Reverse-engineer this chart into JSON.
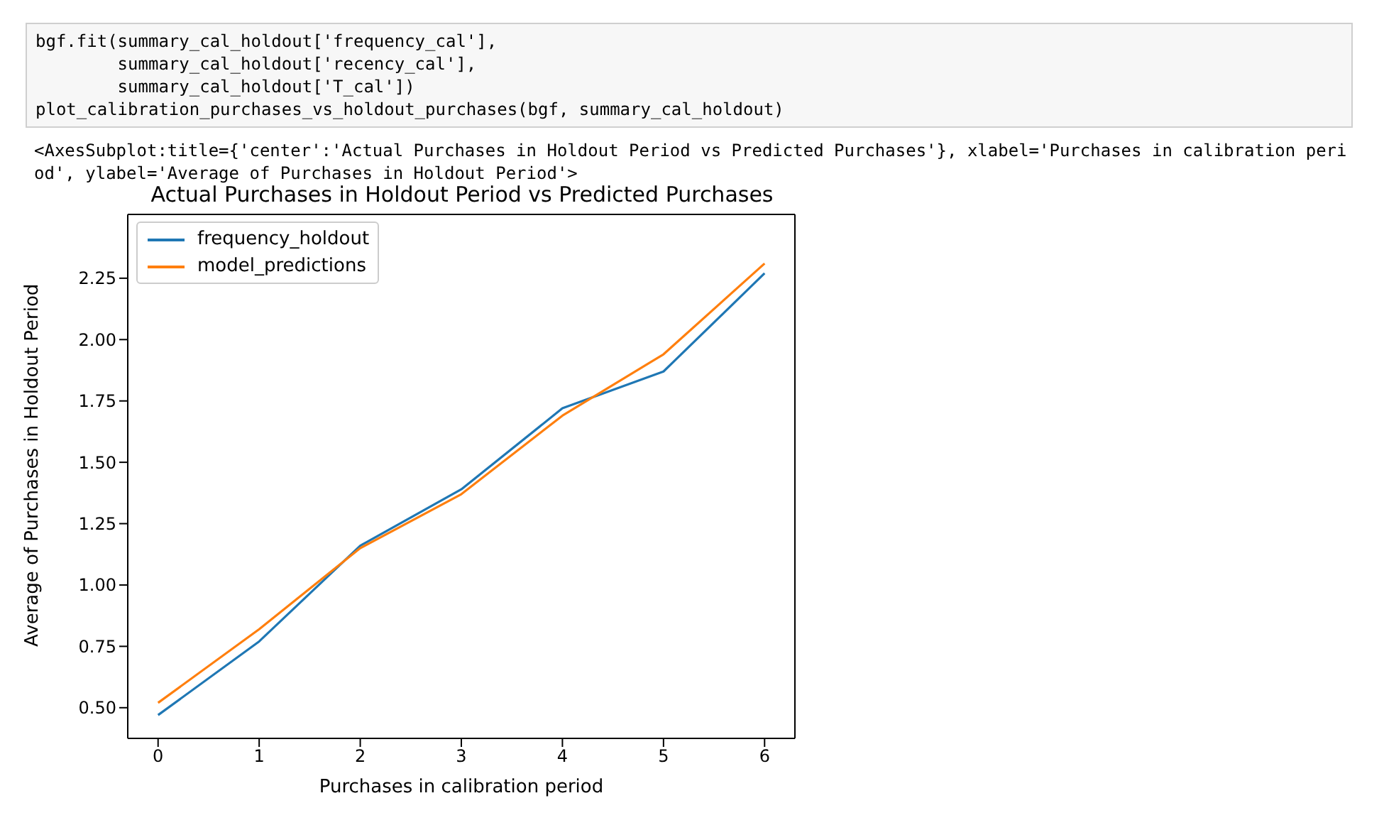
{
  "chart_data": {
    "type": "line",
    "title": "Actual Purchases in Holdout Period vs Predicted Purchases",
    "xlabel": "Purchases in calibration period",
    "ylabel": "Average of Purchases in Holdout Period",
    "annotations": [
      "bgf.fit(summary_cal_holdout['frequency_cal'],",
      "        summary_cal_holdout['recency_cal'],",
      "        summary_cal_holdout['T_cal'])",
      "plot_calibration_purchases_vs_holdout_purchases(bgf, summary_cal_holdout)",
      "<AxesSubplot:title={'center':'Actual Purchases in Holdout Period vs Predicted Purchases'}, xlabel='Purchases in calibration period', ylabel='Average of Purchases in Holdout Period'>"
    ],
    "x": [
      0,
      1,
      2,
      3,
      4,
      5,
      6
    ],
    "series": [
      {
        "name": "frequency_holdout",
        "color": "#1f77b4",
        "values": [
          0.47,
          0.77,
          1.16,
          1.39,
          1.72,
          1.87,
          2.27
        ]
      },
      {
        "name": "model_predictions",
        "color": "#ff7f0e",
        "values": [
          0.52,
          0.82,
          1.15,
          1.37,
          1.69,
          1.94,
          2.31
        ]
      }
    ],
    "xlim": [
      -0.3,
      6.3
    ],
    "xticks": [
      0,
      1,
      2,
      3,
      4,
      5,
      6
    ],
    "ylim": [
      0.375,
      2.51
    ],
    "yticks": [
      {
        "value": 0.5,
        "label": "0.50"
      },
      {
        "value": 0.75,
        "label": "0.75"
      },
      {
        "value": 1.0,
        "label": "1.00"
      },
      {
        "value": 1.25,
        "label": "1.25"
      },
      {
        "value": 1.5,
        "label": "1.50"
      },
      {
        "value": 1.75,
        "label": "1.75"
      },
      {
        "value": 2.0,
        "label": "2.00"
      },
      {
        "value": 2.25,
        "label": "2.25"
      }
    ],
    "grid": false,
    "legend": "top left",
    "marker": "none",
    "line_style": "solid"
  }
}
